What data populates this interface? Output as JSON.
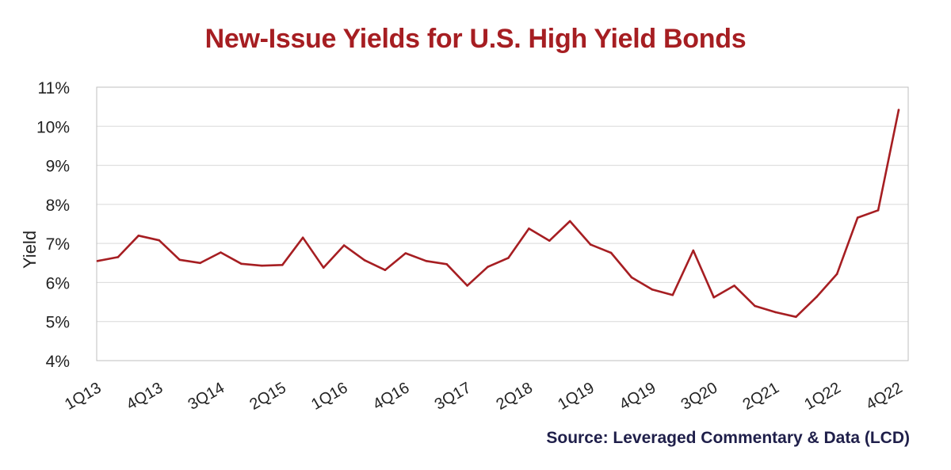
{
  "colors": {
    "title": "#a61e22",
    "line": "#a61e22",
    "source": "#1f1f4a",
    "text": "#222222",
    "grid": "#d9d9d9",
    "axis_frame": "#bfbfbf"
  },
  "chart_data": {
    "type": "line",
    "title": "New-Issue Yields for U.S. High Yield Bonds",
    "source": "Source: Leveraged Commentary & Data (LCD)",
    "xlabel": "",
    "ylabel": "Yield",
    "ylim": [
      4,
      11
    ],
    "yticks": [
      4,
      5,
      6,
      7,
      8,
      9,
      10,
      11
    ],
    "ytick_labels": [
      "4%",
      "5%",
      "6%",
      "7%",
      "8%",
      "9%",
      "10%",
      "11%"
    ],
    "grid": true,
    "legend": "none",
    "x": [
      "1Q13",
      "2Q13",
      "3Q13",
      "4Q13",
      "1Q14",
      "2Q14",
      "3Q14",
      "4Q14",
      "1Q15",
      "2Q15",
      "3Q15",
      "4Q15",
      "1Q16",
      "2Q16",
      "3Q16",
      "4Q16",
      "1Q17",
      "2Q17",
      "3Q17",
      "4Q17",
      "1Q18",
      "2Q18",
      "3Q18",
      "4Q18",
      "1Q19",
      "2Q19",
      "3Q19",
      "4Q19",
      "1Q20",
      "2Q20",
      "3Q20",
      "4Q20",
      "1Q21",
      "2Q21",
      "3Q21",
      "4Q21",
      "1Q22",
      "2Q22",
      "3Q22",
      "4Q22"
    ],
    "xtick_labels": [
      "1Q13",
      "4Q13",
      "3Q14",
      "2Q15",
      "1Q16",
      "4Q16",
      "3Q17",
      "2Q18",
      "1Q19",
      "4Q19",
      "3Q20",
      "2Q21",
      "1Q22",
      "4Q22"
    ],
    "series": [
      {
        "values": [
          6.55,
          6.65,
          7.2,
          7.08,
          6.58,
          6.5,
          6.77,
          6.48,
          6.43,
          6.45,
          7.15,
          6.38,
          6.95,
          6.57,
          6.32,
          6.75,
          6.55,
          6.47,
          5.92,
          6.4,
          6.63,
          7.38,
          7.07,
          7.57,
          6.97,
          6.76,
          6.13,
          5.82,
          5.68,
          6.82,
          5.62,
          5.92,
          5.4,
          5.24,
          5.12,
          5.63,
          6.22,
          7.66,
          7.85,
          10.42
        ]
      }
    ]
  }
}
